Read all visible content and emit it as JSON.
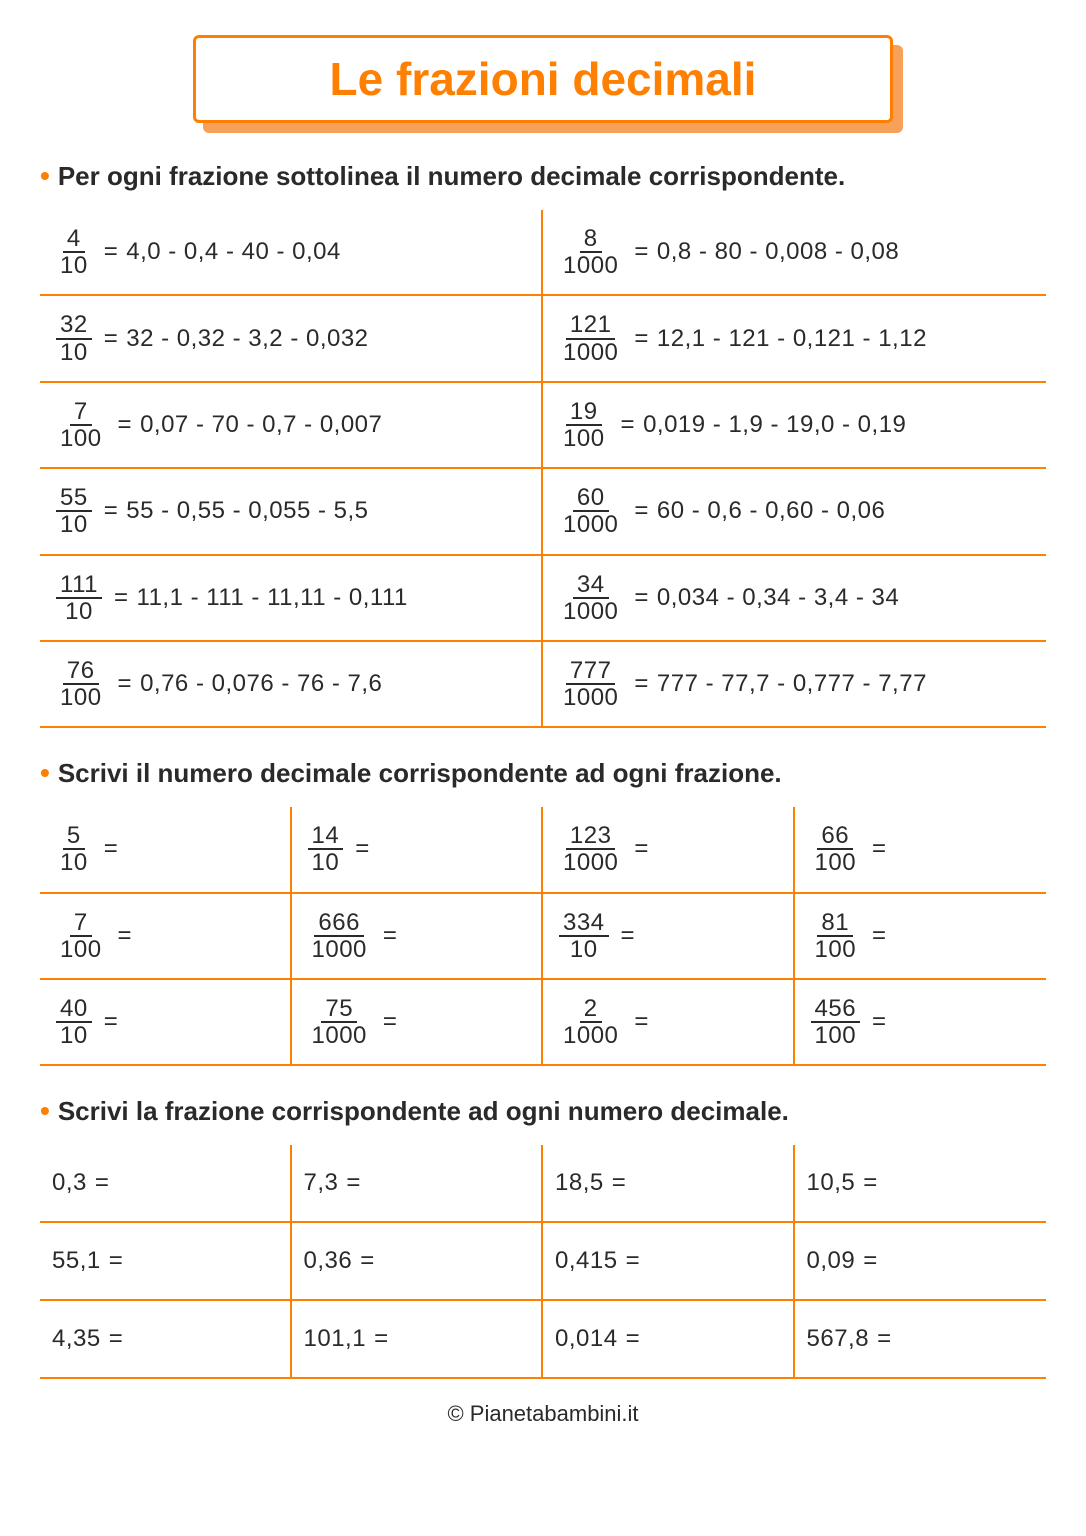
{
  "colors": {
    "accent": "#ff7f00",
    "accent_light": "#f7a05a",
    "text": "#2a2a2a",
    "background": "#ffffff"
  },
  "typography": {
    "title_fontsize": 46,
    "instruction_fontsize": 26,
    "cell_fontsize": 24,
    "footer_fontsize": 22,
    "font_family": "Trebuchet MS"
  },
  "title": "Le frazioni decimali",
  "sections": {
    "s1": {
      "instruction": "Per ogni frazione sottolinea il numero decimale corrispondente.",
      "rows": [
        {
          "l_num": "4",
          "l_den": "10",
          "l_opts": "4,0 - 0,4 - 40 - 0,04",
          "r_num": "8",
          "r_den": "1000",
          "r_opts": "0,8 - 80 - 0,008 - 0,08"
        },
        {
          "l_num": "32",
          "l_den": "10",
          "l_opts": "32 - 0,32 - 3,2 - 0,032",
          "r_num": "121",
          "r_den": "1000",
          "r_opts": "12,1 - 121 - 0,121 - 1,12"
        },
        {
          "l_num": "7",
          "l_den": "100",
          "l_opts": "0,07 - 70 - 0,7 - 0,007",
          "r_num": "19",
          "r_den": "100",
          "r_opts": "0,019 - 1,9 - 19,0 - 0,19"
        },
        {
          "l_num": "55",
          "l_den": "10",
          "l_opts": "55 - 0,55 - 0,055 - 5,5",
          "r_num": "60",
          "r_den": "1000",
          "r_opts": "60 - 0,6 - 0,60 - 0,06"
        },
        {
          "l_num": "111",
          "l_den": "10",
          "l_opts": "11,1 - 111 - 11,11 - 0,111",
          "r_num": "34",
          "r_den": "1000",
          "r_opts": "0,034 - 0,34 - 3,4 - 34"
        },
        {
          "l_num": "76",
          "l_den": "100",
          "l_opts": "0,76 - 0,076 - 76 - 7,6",
          "r_num": "777",
          "r_den": "1000",
          "r_opts": "777 - 77,7 - 0,777 - 7,77"
        }
      ]
    },
    "s2": {
      "instruction": "Scrivi il numero decimale corrispondente ad ogni frazione.",
      "rows": [
        [
          {
            "num": "5",
            "den": "10"
          },
          {
            "num": "14",
            "den": "10"
          },
          {
            "num": "123",
            "den": "1000"
          },
          {
            "num": "66",
            "den": "100"
          }
        ],
        [
          {
            "num": "7",
            "den": "100"
          },
          {
            "num": "666",
            "den": "1000"
          },
          {
            "num": "334",
            "den": "10"
          },
          {
            "num": "81",
            "den": "100"
          }
        ],
        [
          {
            "num": "40",
            "den": "10"
          },
          {
            "num": "75",
            "den": "1000"
          },
          {
            "num": "2",
            "den": "1000"
          },
          {
            "num": "456",
            "den": "100"
          }
        ]
      ]
    },
    "s3": {
      "instruction": "Scrivi la frazione corrispondente ad ogni numero decimale.",
      "rows": [
        [
          "0,3",
          "7,3",
          "18,5",
          "10,5"
        ],
        [
          "55,1",
          "0,36",
          "0,415",
          "0,09"
        ],
        [
          "4,35",
          "101,1",
          "0,014",
          "567,8"
        ]
      ]
    }
  },
  "footer": "© Pianetabambini.it"
}
